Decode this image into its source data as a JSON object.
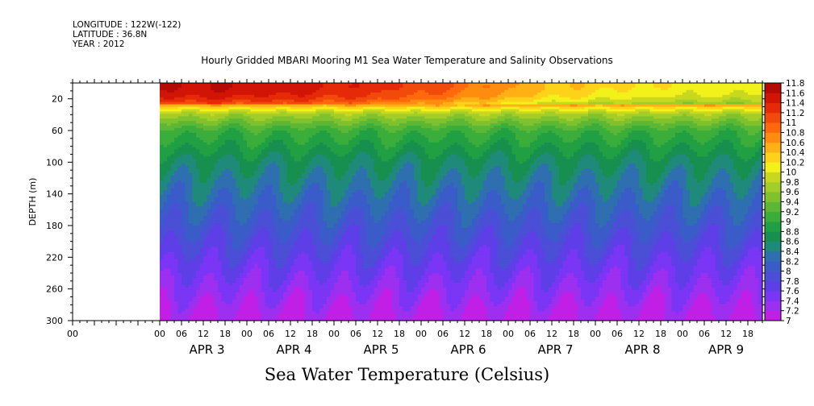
{
  "header": {
    "longitude": "LONGITUDE : 122W(-122)",
    "latitude": "LATITUDE : 36.8N",
    "year": "YEAR : 2012"
  },
  "title": "Hourly Gridded MBARI Mooring M1 Sea Water Temperature and Salinity Observations",
  "variable_title": "Sea Water Temperature (Celsius)",
  "chart_data": {
    "type": "heatmap",
    "title": "Hourly Gridded MBARI Mooring M1 Sea Water Temperature and Salinity Observations",
    "xlabel": "",
    "ylabel": "DEPTH (m)",
    "colorbar_label": "Sea Water Temperature (Celsius)",
    "x_unit": "hours since APR 2 00:00 (2012)",
    "x_range_hours": [
      0,
      190
    ],
    "data_start_hour": 24,
    "y_range": [
      300,
      0
    ],
    "y_reversed": true,
    "y_ticks": [
      20,
      60,
      100,
      140,
      180,
      220,
      260,
      300
    ],
    "x_hour_ticks": [
      {
        "h": 0,
        "label": "00"
      },
      {
        "h": 24,
        "label": "00"
      },
      {
        "h": 30,
        "label": "06"
      },
      {
        "h": 36,
        "label": "12"
      },
      {
        "h": 42,
        "label": "18"
      },
      {
        "h": 48,
        "label": "00"
      },
      {
        "h": 54,
        "label": "06"
      },
      {
        "h": 60,
        "label": "12"
      },
      {
        "h": 66,
        "label": "18"
      },
      {
        "h": 72,
        "label": "00"
      },
      {
        "h": 78,
        "label": "06"
      },
      {
        "h": 84,
        "label": "12"
      },
      {
        "h": 90,
        "label": "18"
      },
      {
        "h": 96,
        "label": "00"
      },
      {
        "h": 102,
        "label": "06"
      },
      {
        "h": 108,
        "label": "12"
      },
      {
        "h": 114,
        "label": "18"
      },
      {
        "h": 120,
        "label": "00"
      },
      {
        "h": 126,
        "label": "06"
      },
      {
        "h": 132,
        "label": "12"
      },
      {
        "h": 138,
        "label": "18"
      },
      {
        "h": 144,
        "label": "00"
      },
      {
        "h": 150,
        "label": "06"
      },
      {
        "h": 156,
        "label": "12"
      },
      {
        "h": 162,
        "label": "18"
      },
      {
        "h": 168,
        "label": "00"
      },
      {
        "h": 174,
        "label": "06"
      },
      {
        "h": 180,
        "label": "12"
      },
      {
        "h": 186,
        "label": "18"
      }
    ],
    "x_day_labels": [
      {
        "h": 37,
        "label": "APR  3"
      },
      {
        "h": 61,
        "label": "APR  4"
      },
      {
        "h": 85,
        "label": "APR  5"
      },
      {
        "h": 109,
        "label": "APR  6"
      },
      {
        "h": 133,
        "label": "APR  7"
      },
      {
        "h": 157,
        "label": "APR  8"
      },
      {
        "h": 180,
        "label": "APR  9"
      }
    ],
    "colorbar": {
      "levels": [
        7,
        7.2,
        7.4,
        7.6,
        7.8,
        8,
        8.2,
        8.4,
        8.6,
        8.8,
        9,
        9.2,
        9.4,
        9.6,
        9.8,
        10,
        10.2,
        10.4,
        10.6,
        10.8,
        11,
        11.2,
        11.4,
        11.6,
        11.8
      ],
      "colors": [
        "#c11fe6",
        "#9c2ff0",
        "#7a35f5",
        "#5e3ee6",
        "#4a4fd6",
        "#3a5cc8",
        "#2e6fb0",
        "#1f8a7a",
        "#168f4f",
        "#21a043",
        "#3aad3b",
        "#5cb834",
        "#7fc22e",
        "#a3cd27",
        "#c8d81f",
        "#f2f21a",
        "#ffd21a",
        "#ffb014",
        "#ff8c0f",
        "#ff690c",
        "#f24a0a",
        "#e62a08",
        "#d11406",
        "#b30a05"
      ],
      "labels": [
        "11.8",
        "11.6",
        "11.4",
        "11.2",
        "11",
        "10.8",
        "10.6",
        "10.4",
        "10.2",
        "10",
        "9.8",
        "9.6",
        "9.4",
        "9.2",
        "9",
        "8.8",
        "8.6",
        "8.4",
        "8.2",
        "8",
        "7.8",
        "7.6",
        "7.4",
        "7.2",
        "7"
      ]
    },
    "profile_by_depth": [
      {
        "depth": 5,
        "temp": 11.4
      },
      {
        "depth": 15,
        "temp": 11.3
      },
      {
        "depth": 25,
        "temp": 11.0
      },
      {
        "depth": 30,
        "temp": 10.3
      },
      {
        "depth": 40,
        "temp": 9.7
      },
      {
        "depth": 60,
        "temp": 9.1
      },
      {
        "depth": 100,
        "temp": 8.6
      },
      {
        "depth": 140,
        "temp": 8.3
      },
      {
        "depth": 180,
        "temp": 8.0
      },
      {
        "depth": 220,
        "temp": 7.7
      },
      {
        "depth": 260,
        "temp": 7.4
      },
      {
        "depth": 300,
        "temp": 7.1
      }
    ],
    "surface_temp_by_day": [
      {
        "label": "APR 3",
        "temp": 11.5
      },
      {
        "label": "APR 4",
        "temp": 11.4
      },
      {
        "label": "APR 5",
        "temp": 11.2
      },
      {
        "label": "APR 6",
        "temp": 10.8
      },
      {
        "label": "APR 7",
        "temp": 10.3
      },
      {
        "label": "APR 8",
        "temp": 10.1
      },
      {
        "label": "APR 9",
        "temp": 10.0
      }
    ],
    "grid": false,
    "legend": "colorbar right"
  }
}
